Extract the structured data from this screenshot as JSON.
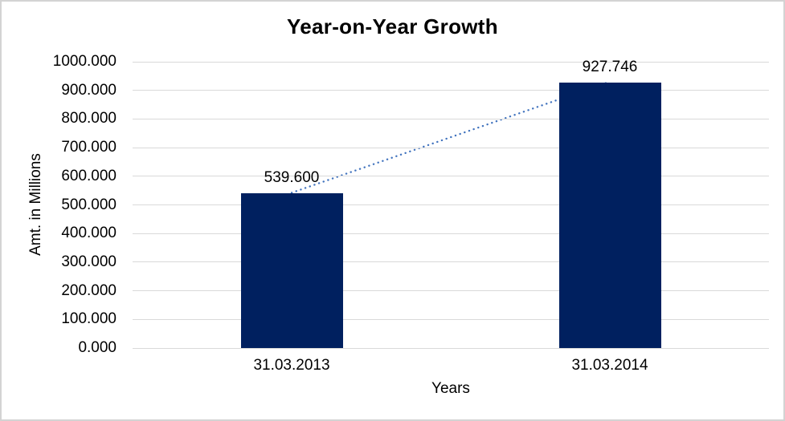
{
  "chart_data": {
    "type": "bar",
    "title": "Year-on-Year Growth",
    "xlabel": "Years",
    "ylabel": "Amt. in Millions",
    "categories": [
      "31.03.2013",
      "31.03.2014"
    ],
    "values": [
      539.6,
      927.746
    ],
    "value_labels": [
      "539.600",
      "927.746"
    ],
    "ylim": [
      0,
      1000
    ],
    "ytick_step": 100,
    "ytick_labels": [
      "0.000",
      "100.000",
      "200.000",
      "300.000",
      "400.000",
      "500.000",
      "600.000",
      "700.000",
      "800.000",
      "900.000",
      "1000.000"
    ],
    "grid": "horizontal-only",
    "legend": "none",
    "colors": {
      "bar": "#00205f",
      "trendline": "#4173be",
      "gridline": "#d9d9d9",
      "text": "#000000",
      "frame_border": "#d3d3d3",
      "background": "#ffffff"
    },
    "trendline": {
      "style": "dotted",
      "connects": "bar tops (539.6 to 927.746)"
    }
  }
}
